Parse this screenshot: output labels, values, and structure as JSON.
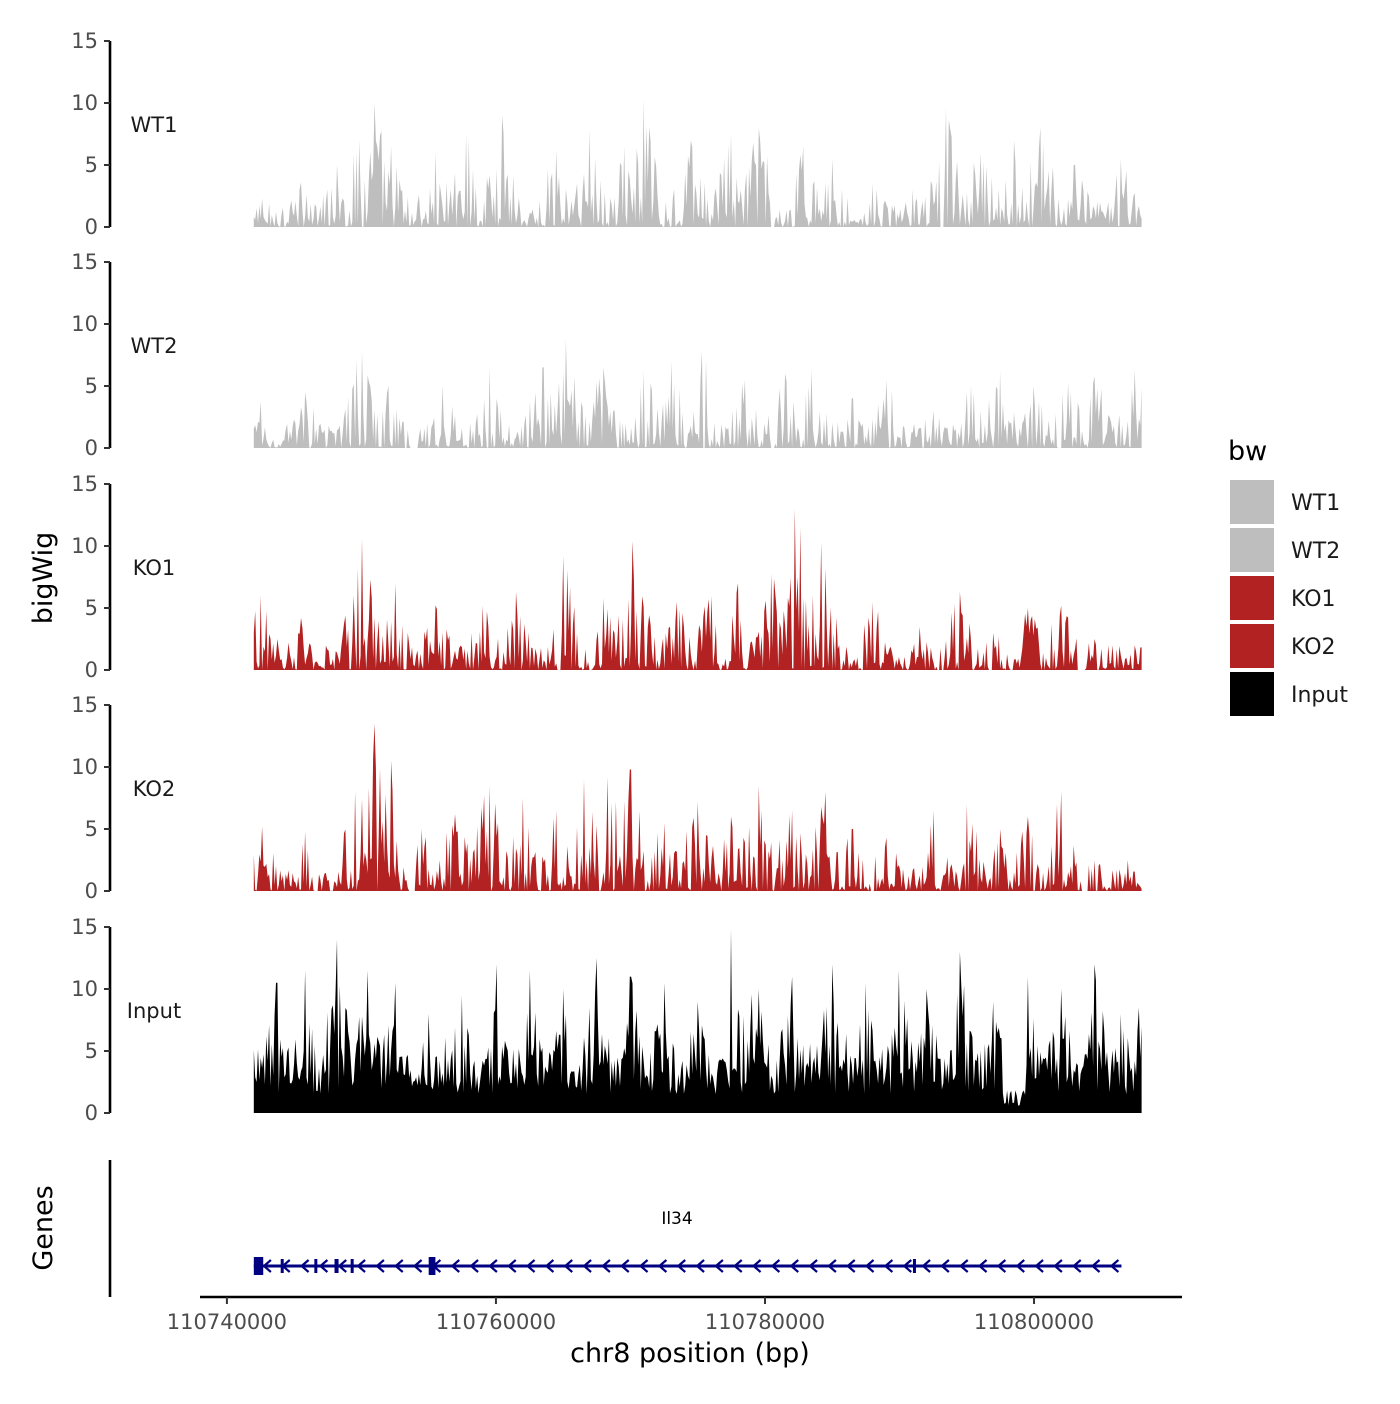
{
  "chart_data": {
    "type": "area",
    "chromosome": "chr8",
    "xlabel": "chr8 position (bp)",
    "ylabel": "bigWig",
    "genes_label": "Genes",
    "xlim": [
      110738000,
      110811000
    ],
    "data_xlim": [
      110742000,
      110808000
    ],
    "xticks": [
      110740000,
      110760000,
      110780000,
      110800000
    ],
    "xtick_labels": [
      "110740000",
      "110760000",
      "110780000",
      "110800000"
    ],
    "ylim": [
      0,
      15
    ],
    "yticks": [
      0,
      5,
      10,
      15
    ],
    "ytick_labels": [
      "0",
      "5",
      "10",
      "15"
    ],
    "legend": {
      "title": "bw",
      "position": "right",
      "entries": [
        {
          "label": "WT1",
          "color": "#bebebe"
        },
        {
          "label": "WT2",
          "color": "#bebebe"
        },
        {
          "label": "KO1",
          "color": "#b22222"
        },
        {
          "label": "KO2",
          "color": "#b22222"
        },
        {
          "label": "Input",
          "color": "#000000"
        }
      ]
    },
    "series": [
      {
        "name": "WT1",
        "color": "#bebebe",
        "peaks": [
          [
            110742600,
            2.3
          ],
          [
            110745500,
            3.6
          ],
          [
            110748200,
            5.0
          ],
          [
            110749800,
            7.0
          ],
          [
            110751000,
            10.0
          ],
          [
            110752200,
            6.5
          ],
          [
            110755500,
            6.0
          ],
          [
            110757800,
            7.5
          ],
          [
            110760500,
            9.0
          ],
          [
            110764500,
            6.2
          ],
          [
            110767000,
            7.8
          ],
          [
            110769500,
            6.5
          ],
          [
            110771000,
            10.3
          ],
          [
            110774500,
            7.0
          ],
          [
            110777500,
            7.5
          ],
          [
            110779500,
            8.0
          ],
          [
            110782800,
            6.5
          ],
          [
            110785000,
            5.5
          ],
          [
            110788000,
            3.5
          ],
          [
            110791000,
            3.0
          ],
          [
            110793500,
            9.6
          ],
          [
            110796000,
            6.0
          ],
          [
            110798500,
            7.0
          ],
          [
            110800500,
            8.0
          ],
          [
            110803000,
            5.0
          ],
          [
            110806500,
            5.5
          ]
        ],
        "gaps": [
          [
            110780400,
            110780700
          ],
          [
            110793000,
            110793300
          ]
        ]
      },
      {
        "name": "WT2",
        "color": "#bebebe",
        "peaks": [
          [
            110742500,
            3.8
          ],
          [
            110745800,
            4.5
          ],
          [
            110750000,
            7.8
          ],
          [
            110752000,
            5.0
          ],
          [
            110756000,
            5.0
          ],
          [
            110759500,
            6.5
          ],
          [
            110763500,
            6.5
          ],
          [
            110765200,
            8.8
          ],
          [
            110768000,
            6.5
          ],
          [
            110771000,
            6.2
          ],
          [
            110773000,
            7.0
          ],
          [
            110775300,
            7.8
          ],
          [
            110778500,
            5.5
          ],
          [
            110781500,
            6.0
          ],
          [
            110783500,
            6.3
          ],
          [
            110786500,
            4.0
          ],
          [
            110789000,
            5.5
          ],
          [
            110792500,
            3.0
          ],
          [
            110795300,
            5.0
          ],
          [
            110797500,
            6.2
          ],
          [
            110800000,
            5.0
          ],
          [
            110802500,
            5.2
          ],
          [
            110804500,
            5.8
          ],
          [
            110807500,
            6.3
          ]
        ],
        "gaps": [
          [
            110753600,
            110754200
          ],
          [
            110780400,
            110780700
          ],
          [
            110801800,
            110802100
          ]
        ]
      },
      {
        "name": "KO1",
        "color": "#b22222",
        "peaks": [
          [
            110742500,
            6.0
          ],
          [
            110745500,
            4.2
          ],
          [
            110750000,
            10.6
          ],
          [
            110752500,
            7.0
          ],
          [
            110755500,
            5.2
          ],
          [
            110759000,
            5.2
          ],
          [
            110761500,
            6.3
          ],
          [
            110765000,
            9.2
          ],
          [
            110768000,
            5.8
          ],
          [
            110770200,
            10.4
          ],
          [
            110773500,
            5.5
          ],
          [
            110776000,
            6.0
          ],
          [
            110778000,
            7.0
          ],
          [
            110780500,
            7.8
          ],
          [
            110782200,
            13.0
          ],
          [
            110784200,
            10.3
          ],
          [
            110788000,
            5.5
          ],
          [
            110791500,
            3.5
          ],
          [
            110794500,
            6.3
          ],
          [
            110797000,
            3.0
          ],
          [
            110799500,
            5.0
          ],
          [
            110802000,
            5.2
          ],
          [
            110804500,
            2.5
          ],
          [
            110807500,
            2.0
          ]
        ],
        "gaps": [
          [
            110764500,
            110764800
          ],
          [
            110792800,
            110793000
          ],
          [
            110796600,
            110796900
          ],
          [
            110803200,
            110803800
          ]
        ]
      },
      {
        "name": "KO2",
        "color": "#b22222",
        "peaks": [
          [
            110742600,
            5.2
          ],
          [
            110745800,
            4.8
          ],
          [
            110749500,
            8.0
          ],
          [
            110751000,
            13.5
          ],
          [
            110752200,
            10.5
          ],
          [
            110754500,
            5.0
          ],
          [
            110757000,
            6.2
          ],
          [
            110759500,
            8.5
          ],
          [
            110762000,
            7.5
          ],
          [
            110764500,
            6.5
          ],
          [
            110766500,
            9.0
          ],
          [
            110768300,
            9.2
          ],
          [
            110770000,
            9.8
          ],
          [
            110772500,
            5.5
          ],
          [
            110775000,
            7.2
          ],
          [
            110777500,
            6.0
          ],
          [
            110779500,
            8.5
          ],
          [
            110782000,
            6.5
          ],
          [
            110784500,
            8.0
          ],
          [
            110786500,
            5.0
          ],
          [
            110789000,
            4.3
          ],
          [
            110792500,
            6.5
          ],
          [
            110795000,
            7.0
          ],
          [
            110797500,
            5.0
          ],
          [
            110799500,
            6.0
          ],
          [
            110802000,
            8.0
          ],
          [
            110804500,
            2.5
          ],
          [
            110807000,
            2.5
          ]
        ],
        "gaps": [
          [
            110746500,
            110746800
          ],
          [
            110753500,
            110754000
          ],
          [
            110803500,
            110804000
          ]
        ]
      },
      {
        "name": "Input",
        "color": "#000000",
        "peaks": [
          [
            110742200,
            2.5
          ],
          [
            110743700,
            10.5
          ],
          [
            110745800,
            11.5
          ],
          [
            110748200,
            14.0
          ],
          [
            110750500,
            11.5
          ],
          [
            110752500,
            10.5
          ],
          [
            110755000,
            8.0
          ],
          [
            110757500,
            9.5
          ],
          [
            110760000,
            12.0
          ],
          [
            110762500,
            11.5
          ],
          [
            110765000,
            10.0
          ],
          [
            110767500,
            12.5
          ],
          [
            110770000,
            11.0
          ],
          [
            110772500,
            10.5
          ],
          [
            110775000,
            9.0
          ],
          [
            110777500,
            14.8
          ],
          [
            110779500,
            10.0
          ],
          [
            110782000,
            11.0
          ],
          [
            110785000,
            12.0
          ],
          [
            110787500,
            10.5
          ],
          [
            110790000,
            11.5
          ],
          [
            110792000,
            10.0
          ],
          [
            110794500,
            13.0
          ],
          [
            110797000,
            9.0
          ],
          [
            110799500,
            11.0
          ],
          [
            110802000,
            10.0
          ],
          [
            110804500,
            12.0
          ],
          [
            110806500,
            8.0
          ],
          [
            110807800,
            8.5
          ]
        ],
        "dips": [
          [
            110777000,
            3.0
          ],
          [
            110798500,
            0.5
          ]
        ]
      }
    ],
    "gene_track": {
      "gene_name": "Il34",
      "strand": "-",
      "start": 110742000,
      "end": 110806500,
      "color": "#000080",
      "exons": [
        [
          110742000,
          110742700
        ],
        [
          110744000,
          110744200
        ],
        [
          110746500,
          110746600
        ],
        [
          110748000,
          110748300
        ],
        [
          110749200,
          110749400
        ],
        [
          110755000,
          110755500
        ],
        [
          110791000,
          110791100
        ]
      ]
    }
  }
}
